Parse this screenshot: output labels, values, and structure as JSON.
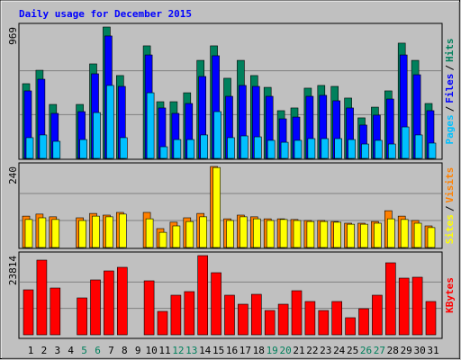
{
  "chart_data": [
    {
      "type": "bar",
      "title": "Daily usage for December 2015",
      "title_color": "#0000ff",
      "legend_separator": "/",
      "ylim": [
        0,
        969
      ],
      "yticks": [
        969
      ],
      "series": [
        {
          "name": "Hits",
          "color": "#00805c",
          "values": [
            551,
            650,
            398,
            0,
            398,
            697,
            969,
            611,
            0,
            830,
            418,
            418,
            484,
            723,
            830,
            591,
            723,
            611,
            524,
            352,
            372,
            518,
            538,
            531,
            445,
            299,
            378,
            498,
            850,
            723,
            405
          ]
        },
        {
          "name": "Files",
          "color": "#0000ff",
          "values": [
            498,
            584,
            332,
            0,
            345,
            624,
            903,
            531,
            0,
            763,
            372,
            332,
            405,
            604,
            757,
            458,
            538,
            531,
            458,
            292,
            305,
            458,
            465,
            425,
            372,
            246,
            319,
            438,
            763,
            617,
            352
          ]
        },
        {
          "name": "Pages",
          "color": "#00c0ff",
          "values": [
            153,
            173,
            126,
            0,
            139,
            338,
            538,
            153,
            0,
            484,
            86,
            139,
            139,
            173,
            345,
            153,
            166,
            159,
            133,
            119,
            133,
            146,
            146,
            146,
            139,
            106,
            133,
            106,
            232,
            173,
            113
          ]
        }
      ]
    },
    {
      "type": "bar",
      "legend_separator": "/",
      "ylim": [
        0,
        240
      ],
      "yticks": [
        240
      ],
      "series": [
        {
          "name": "Visits",
          "color": "#ff8000",
          "values": [
            93,
            99,
            91,
            0,
            88,
            101,
            96,
            104,
            0,
            104,
            56,
            75,
            88,
            101,
            240,
            85,
            96,
            91,
            85,
            85,
            83,
            80,
            80,
            77,
            72,
            72,
            77,
            109,
            93,
            80,
            64
          ]
        },
        {
          "name": "Sites",
          "color": "#ffff00",
          "values": [
            83,
            88,
            83,
            0,
            80,
            93,
            91,
            99,
            0,
            85,
            45,
            64,
            77,
            91,
            237,
            80,
            91,
            85,
            80,
            83,
            80,
            77,
            77,
            75,
            69,
            69,
            72,
            85,
            83,
            72,
            59
          ]
        }
      ]
    },
    {
      "type": "bar",
      "ylim": [
        0,
        23814
      ],
      "yticks": [
        23814
      ],
      "series": [
        {
          "name": "KBytes",
          "color": "#ff0000",
          "values": [
            13531,
            22460,
            14071,
            0,
            11095,
            16507,
            19213,
            20295,
            0,
            16236,
            7036,
            11907,
            12989,
            23814,
            18672,
            11907,
            9200,
            12177,
            7306,
            9200,
            13260,
            10013,
            7306,
            10013,
            5142,
            7848,
            11907,
            21649,
            17049,
            17319,
            10013
          ]
        }
      ],
      "categories": [
        "1",
        "2",
        "3",
        "4",
        "5",
        "6",
        "7",
        "8",
        "9",
        "10",
        "11",
        "12",
        "13",
        "14",
        "15",
        "16",
        "17",
        "18",
        "19",
        "20",
        "21",
        "22",
        "23",
        "24",
        "25",
        "26",
        "27",
        "28",
        "29",
        "30",
        "31"
      ],
      "category_colors": [
        "#000000",
        "#000000",
        "#000000",
        "#000000",
        "#00805c",
        "#00805c",
        "#000000",
        "#000000",
        "#000000",
        "#000000",
        "#000000",
        "#00805c",
        "#00805c",
        "#000000",
        "#000000",
        "#000000",
        "#000000",
        "#000000",
        "#00805c",
        "#00805c",
        "#000000",
        "#000000",
        "#000000",
        "#000000",
        "#000000",
        "#00805c",
        "#00805c",
        "#000000",
        "#000000",
        "#000000",
        "#000000"
      ]
    }
  ]
}
